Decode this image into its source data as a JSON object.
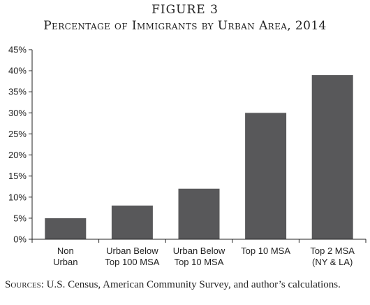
{
  "figure_number": "FIGURE 3",
  "chart_data": {
    "type": "bar",
    "title": "Percentage of Immigrants by Urban Area, 2014",
    "categories": [
      [
        "Non",
        "Urban"
      ],
      [
        "Urban Below",
        "Top 100 MSA"
      ],
      [
        "Urban Below",
        "Top 10 MSA"
      ],
      [
        "Top 10 MSA"
      ],
      [
        "Top 2 MSA",
        "(NY & LA)"
      ]
    ],
    "values": [
      5,
      8,
      12,
      30,
      39
    ],
    "ylim": [
      0,
      45
    ],
    "yticks": [
      0,
      5,
      10,
      15,
      20,
      25,
      30,
      35,
      40,
      45
    ],
    "ytick_labels": [
      "0%",
      "5%",
      "10%",
      "15%",
      "20%",
      "25%",
      "30%",
      "35%",
      "40%",
      "45%"
    ],
    "xlabel": "",
    "ylabel": "",
    "grid": false,
    "legend": "none",
    "bar_color": "#58585a"
  },
  "source": {
    "label": "Sources:",
    "text": " U.S. Census, American Community Survey, and author’s calculations."
  }
}
